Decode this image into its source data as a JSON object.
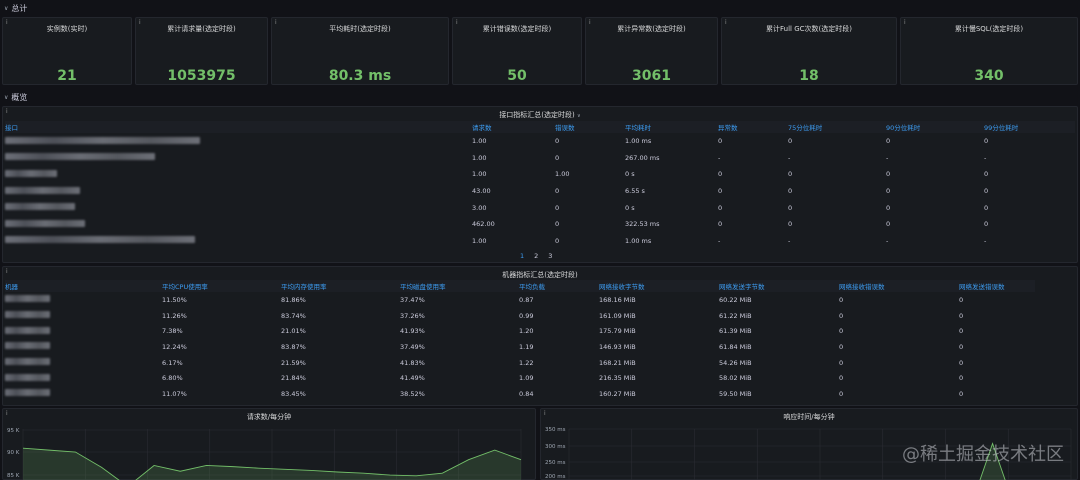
{
  "rows": {
    "total": "总计",
    "overview": "概览"
  },
  "stats": [
    {
      "title": "实例数(实时)",
      "value": "21"
    },
    {
      "title": "累计请求量(选定时段)",
      "value": "1053975"
    },
    {
      "title": "平均耗时(选定时段)",
      "value": "80.3 ms"
    },
    {
      "title": "累计错误数(选定时段)",
      "value": "50"
    },
    {
      "title": "累计异常数(选定时段)",
      "value": "3061"
    },
    {
      "title": "累计Full GC次数(选定时段)",
      "value": "18"
    },
    {
      "title": "累计慢SQL(选定时段)",
      "value": "340"
    }
  ],
  "api_table": {
    "title": "接口指标汇总(选定时段)",
    "columns": [
      "接口",
      "请求数",
      "错误数",
      "平均耗时",
      "异常数",
      "75分位耗时",
      "90分位耗时",
      "99分位耗时"
    ],
    "rows": [
      [
        "1.00",
        "0",
        "1.00 ms",
        "0",
        "0",
        "0",
        "0"
      ],
      [
        "1.00",
        "0",
        "267.00 ms",
        "-",
        "-",
        "-",
        "-"
      ],
      [
        "1.00",
        "1.00",
        "0 s",
        "0",
        "0",
        "0",
        "0"
      ],
      [
        "43.00",
        "0",
        "6.55 s",
        "0",
        "0",
        "0",
        "0"
      ],
      [
        "3.00",
        "0",
        "0 s",
        "0",
        "0",
        "0",
        "0"
      ],
      [
        "462.00",
        "0",
        "322.53 ms",
        "0",
        "0",
        "0",
        "0"
      ],
      [
        "1.00",
        "0",
        "1.00 ms",
        "-",
        "-",
        "-",
        "-"
      ]
    ],
    "pages": [
      "1",
      "2",
      "3"
    ]
  },
  "machine_table": {
    "title": "机器指标汇总(选定时段)",
    "columns": [
      "机器",
      "平均CPU使用率",
      "平均内存使用率",
      "平均磁盘使用率",
      "平均负载",
      "网络接收字节数",
      "网络发送字节数",
      "网络接收错误数",
      "网络发送错误数"
    ],
    "rows": [
      [
        "11.50%",
        "81.86%",
        "37.47%",
        "0.87",
        "168.16 MiB",
        "60.22 MiB",
        "0",
        "0"
      ],
      [
        "11.26%",
        "83.74%",
        "37.26%",
        "0.99",
        "161.09 MiB",
        "61.22 MiB",
        "0",
        "0"
      ],
      [
        "7.38%",
        "21.01%",
        "41.93%",
        "1.20",
        "175.79 MiB",
        "61.39 MiB",
        "0",
        "0"
      ],
      [
        "12.24%",
        "83.87%",
        "37.49%",
        "1.19",
        "146.93 MiB",
        "61.84 MiB",
        "0",
        "0"
      ],
      [
        "6.17%",
        "21.59%",
        "41.83%",
        "1.22",
        "168.21 MiB",
        "54.26 MiB",
        "0",
        "0"
      ],
      [
        "6.80%",
        "21.84%",
        "41.49%",
        "1.09",
        "216.35 MiB",
        "58.02 MiB",
        "0",
        "0"
      ],
      [
        "11.07%",
        "83.45%",
        "38.52%",
        "0.84",
        "160.27 MiB",
        "59.50 MiB",
        "0",
        "0"
      ]
    ]
  },
  "chart_data": [
    {
      "type": "area",
      "title": "请求数/每分钟",
      "yticks": [
        "95 K",
        "90 K",
        "85 K"
      ],
      "ylim": [
        83500,
        96000
      ],
      "series": [
        {
          "values": [
            91000,
            90500,
            90000,
            86000,
            81000,
            86500,
            85000,
            86500,
            86200,
            85800,
            85500,
            85200,
            84800,
            84500,
            84000,
            83800,
            84500,
            88000,
            90500,
            88000
          ]
        }
      ],
      "color": "#73bf69"
    },
    {
      "type": "area",
      "title": "响应时间/每分钟",
      "yticks": [
        "350 ms",
        "300 ms",
        "250 ms",
        "200 ms"
      ],
      "ylim": [
        195,
        360
      ],
      "series": [
        {
          "values": [
            150,
            150,
            150,
            150,
            150,
            150,
            150,
            150,
            150,
            150,
            150,
            150,
            150,
            150,
            150,
            150,
            150,
            150,
            150,
            150,
            150,
            150,
            150,
            150,
            150,
            150,
            150,
            310,
            150,
            150,
            150,
            150,
            150
          ]
        }
      ],
      "color": "#73bf69"
    }
  ],
  "watermark": "@稀土掘金技术社区",
  "colors": {
    "stat_green": "#73bf69",
    "header_blue": "#3d9df3",
    "panel_bg": "#181b1f",
    "page_bg": "#111217"
  }
}
